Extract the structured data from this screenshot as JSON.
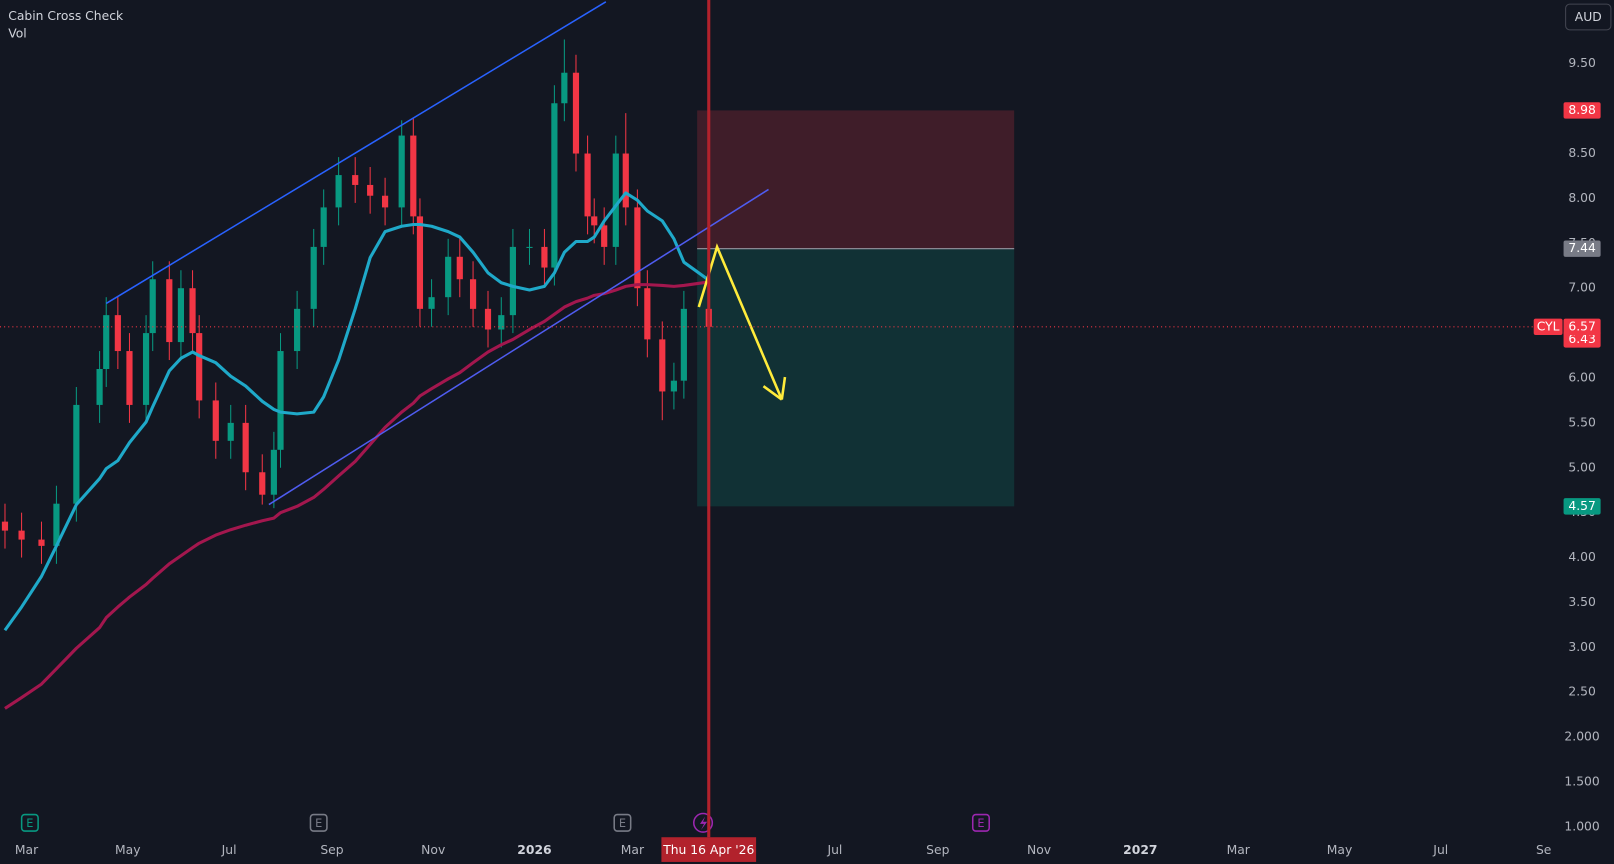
{
  "chart_data": {
    "type": "candlestick",
    "title": "Cabin Cross Check",
    "subtitle": "Vol",
    "currency": "AUD",
    "up_color": "#089981",
    "down_color": "#f23645",
    "x": [
      "2025-02-16",
      "2025-02-26",
      "2025-03-10",
      "2025-03-19",
      "2025-03-31",
      "2025-04-14",
      "2025-04-18",
      "2025-04-25",
      "2025-05-02",
      "2025-05-12",
      "2025-05-16",
      "2025-05-26",
      "2025-06-02",
      "2025-06-09",
      "2025-06-13",
      "2025-06-23",
      "2025-07-02",
      "2025-07-11",
      "2025-07-21",
      "2025-07-28",
      "2025-08-01",
      "2025-08-11",
      "2025-08-21",
      "2025-08-27",
      "2025-09-05",
      "2025-09-15",
      "2025-09-24",
      "2025-10-03",
      "2025-10-13",
      "2025-10-20",
      "2025-10-24",
      "2025-10-31",
      "2025-11-10",
      "2025-11-17",
      "2025-11-25",
      "2025-12-04",
      "2025-12-12",
      "2025-12-19",
      "2025-12-29",
      "2026-01-07",
      "2026-01-13",
      "2026-01-19",
      "2026-01-26",
      "2026-02-02",
      "2026-02-06",
      "2026-02-12",
      "2026-02-19",
      "2026-02-25",
      "2026-03-04",
      "2026-03-10",
      "2026-03-19",
      "2026-03-26",
      "2026-04-01",
      "2026-04-16"
    ],
    "open": [
      4.4,
      4.3,
      4.2,
      4.13,
      4.6,
      5.7,
      6.1,
      6.7,
      6.3,
      5.7,
      6.5,
      7.1,
      6.4,
      7.0,
      6.5,
      5.75,
      5.3,
      5.5,
      4.95,
      4.7,
      5.2,
      6.3,
      6.77,
      7.46,
      7.9,
      8.26,
      8.15,
      8.03,
      7.9,
      8.7,
      7.8,
      6.77,
      6.9,
      7.35,
      7.1,
      6.77,
      6.54,
      6.7,
      7.46,
      7.46,
      7.23,
      9.06,
      9.4,
      8.5,
      7.8,
      7.7,
      7.46,
      8.5,
      7.9,
      7.0,
      6.43,
      5.85,
      5.97,
      6.77
    ],
    "high": [
      4.6,
      4.5,
      4.4,
      4.8,
      5.9,
      6.3,
      6.9,
      6.9,
      6.5,
      6.7,
      7.3,
      7.3,
      7.2,
      7.2,
      6.7,
      5.95,
      5.7,
      5.7,
      5.15,
      5.4,
      6.5,
      6.97,
      7.66,
      8.1,
      8.46,
      8.46,
      8.35,
      8.23,
      8.87,
      8.9,
      8.0,
      7.1,
      7.55,
      7.55,
      7.3,
      6.97,
      6.9,
      7.66,
      7.66,
      7.66,
      9.26,
      9.77,
      9.6,
      8.7,
      8.0,
      7.9,
      8.7,
      8.95,
      8.1,
      7.2,
      6.63,
      6.17,
      6.97,
      6.97
    ],
    "low": [
      4.1,
      4.0,
      3.93,
      3.93,
      4.4,
      5.5,
      5.9,
      6.1,
      5.5,
      5.5,
      6.3,
      6.2,
      6.2,
      6.3,
      5.55,
      5.1,
      5.1,
      4.75,
      4.59,
      4.55,
      5.0,
      6.1,
      6.57,
      7.26,
      7.7,
      7.95,
      7.83,
      7.7,
      7.7,
      7.6,
      6.57,
      6.57,
      6.7,
      6.9,
      6.57,
      6.34,
      6.34,
      6.5,
      7.26,
      7.03,
      7.03,
      8.86,
      8.3,
      7.6,
      7.5,
      7.26,
      7.26,
      7.7,
      6.8,
      6.23,
      5.53,
      5.65,
      5.77,
      6.37
    ],
    "close": [
      4.3,
      4.2,
      4.13,
      4.6,
      5.7,
      6.1,
      6.7,
      6.3,
      5.7,
      6.5,
      7.1,
      6.4,
      7.0,
      6.5,
      5.75,
      5.3,
      5.5,
      4.95,
      4.7,
      5.2,
      6.3,
      6.77,
      7.46,
      7.9,
      8.26,
      8.15,
      8.03,
      7.9,
      8.7,
      7.8,
      6.77,
      6.9,
      7.35,
      7.1,
      6.77,
      6.54,
      6.7,
      7.46,
      7.46,
      7.23,
      9.06,
      9.4,
      8.5,
      7.8,
      7.7,
      7.46,
      8.5,
      7.9,
      7.0,
      6.43,
      5.85,
      5.97,
      6.77,
      6.57
    ],
    "overlays": [
      {
        "color": "#1fa9c9",
        "values": [
          3.19,
          3.45,
          3.79,
          4.13,
          4.59,
          4.88,
          4.99,
          5.08,
          5.28,
          5.51,
          5.68,
          6.08,
          6.22,
          6.29,
          6.25,
          6.17,
          6.02,
          5.91,
          5.74,
          5.65,
          5.62,
          5.6,
          5.62,
          5.79,
          6.2,
          6.77,
          7.34,
          7.63,
          7.69,
          7.71,
          7.71,
          7.69,
          7.63,
          7.57,
          7.4,
          7.17,
          7.06,
          7.02,
          6.98,
          7.02,
          7.17,
          7.4,
          7.52,
          7.52,
          7.57,
          7.75,
          7.92,
          8.06,
          7.98,
          7.86,
          7.75,
          7.55,
          7.29,
          7.09
        ]
      },
      {
        "color": "#a3174e",
        "values": [
          2.32,
          2.44,
          2.59,
          2.76,
          2.99,
          3.22,
          3.33,
          3.45,
          3.56,
          3.7,
          3.77,
          3.93,
          4.02,
          4.11,
          4.16,
          4.25,
          4.31,
          4.36,
          4.41,
          4.44,
          4.5,
          4.57,
          4.67,
          4.76,
          4.91,
          5.07,
          5.26,
          5.45,
          5.62,
          5.72,
          5.8,
          5.88,
          5.99,
          6.06,
          6.17,
          6.29,
          6.37,
          6.43,
          6.54,
          6.63,
          6.71,
          6.79,
          6.85,
          6.89,
          6.92,
          6.94,
          6.98,
          7.02,
          7.04,
          7.04,
          7.03,
          7.02,
          7.03,
          7.07
        ]
      }
    ],
    "xlim": [
      "2025-02-13",
      "2027-08-26"
    ],
    "xticks": [
      {
        "value": "2025-03",
        "label": "Mar"
      },
      {
        "value": "2025-05",
        "label": "May"
      },
      {
        "value": "2025-07",
        "label": "Jul"
      },
      {
        "value": "2025-09",
        "label": "Sep"
      },
      {
        "value": "2025-11",
        "label": "Nov"
      },
      {
        "value": "2026-01",
        "label": "2026"
      },
      {
        "value": "2026-03",
        "label": "Mar"
      },
      {
        "value": "2026-07",
        "label": "Jul"
      },
      {
        "value": "2026-09",
        "label": "Sep"
      },
      {
        "value": "2026-11",
        "label": "Nov"
      },
      {
        "value": "2027-01",
        "label": "2027"
      },
      {
        "value": "2027-03",
        "label": "Mar"
      },
      {
        "value": "2027-05",
        "label": "May"
      },
      {
        "value": "2027-07",
        "label": "Jul"
      },
      {
        "value": "2027-09",
        "label": "Se"
      }
    ],
    "ylim": [
      0.885,
      10.21
    ],
    "yticks": [
      {
        "value": 9.5,
        "label": "9.50"
      },
      {
        "value": 9,
        "label": "9.00"
      },
      {
        "value": 8.5,
        "label": "8.50"
      },
      {
        "value": 8,
        "label": "8.00"
      },
      {
        "value": 7.5,
        "label": "7.50"
      },
      {
        "value": 7,
        "label": "7.00"
      },
      {
        "value": 6.5,
        "label": "6.50"
      },
      {
        "value": 6,
        "label": "6.00"
      },
      {
        "value": 5.5,
        "label": "5.50"
      },
      {
        "value": 5,
        "label": "5.00"
      },
      {
        "value": 4.5,
        "label": "4.50"
      },
      {
        "value": 4,
        "label": "4.00"
      },
      {
        "value": 3.5,
        "label": "3.50"
      },
      {
        "value": 3,
        "label": "3.00"
      },
      {
        "value": 2.5,
        "label": "2.50"
      },
      {
        "value": 2,
        "label": "2.000"
      },
      {
        "value": 1.5,
        "label": "1.500"
      },
      {
        "value": 1,
        "label": "1.000"
      }
    ],
    "grid": false,
    "last_price": {
      "symbol": "CYL",
      "value": 6.57,
      "color": "#f23645"
    },
    "price_labels": [
      {
        "value": 8.98,
        "color": "#f23645"
      },
      {
        "value": 7.44,
        "color": "#787b86"
      },
      {
        "value": 6.43,
        "color": "#f23645"
      },
      {
        "value": 4.57,
        "color": "#089981"
      }
    ],
    "crosshair": {
      "x": "2026-04-16",
      "label": "Thu 16 Apr '26",
      "color": "#b2222c"
    },
    "position": {
      "start": "2026-04-09",
      "end": "2026-10-17",
      "entry": 7.44,
      "stop": 8.98,
      "target": 4.57
    },
    "trendlines": [
      {
        "color": "#2962ff",
        "points": [
          {
            "x": "2025-04-18",
            "y": 6.83
          },
          {
            "x": "2026-02-13",
            "y": 10.19
          }
        ]
      },
      {
        "color": "#4f5cf0",
        "points": [
          {
            "x": "2025-07-25",
            "y": 4.59
          },
          {
            "x": "2026-05-22",
            "y": 8.1
          }
        ]
      }
    ],
    "arrow": {
      "color": "#ffeb3b",
      "points": [
        {
          "x": "2026-04-10",
          "y": 6.79
        },
        {
          "x": "2026-04-21",
          "y": 7.46
        },
        {
          "x": "2026-05-30",
          "y": 5.76
        }
      ]
    },
    "events": [
      {
        "x": "2025-03-03",
        "label": "E",
        "color": "#089981"
      },
      {
        "x": "2025-08-24",
        "label": "E",
        "color": "#787b86"
      },
      {
        "x": "2026-02-23",
        "label": "E",
        "color": "#787b86"
      },
      {
        "x": "2026-09-27",
        "label": "E",
        "color": "#9c27b0"
      }
    ]
  }
}
